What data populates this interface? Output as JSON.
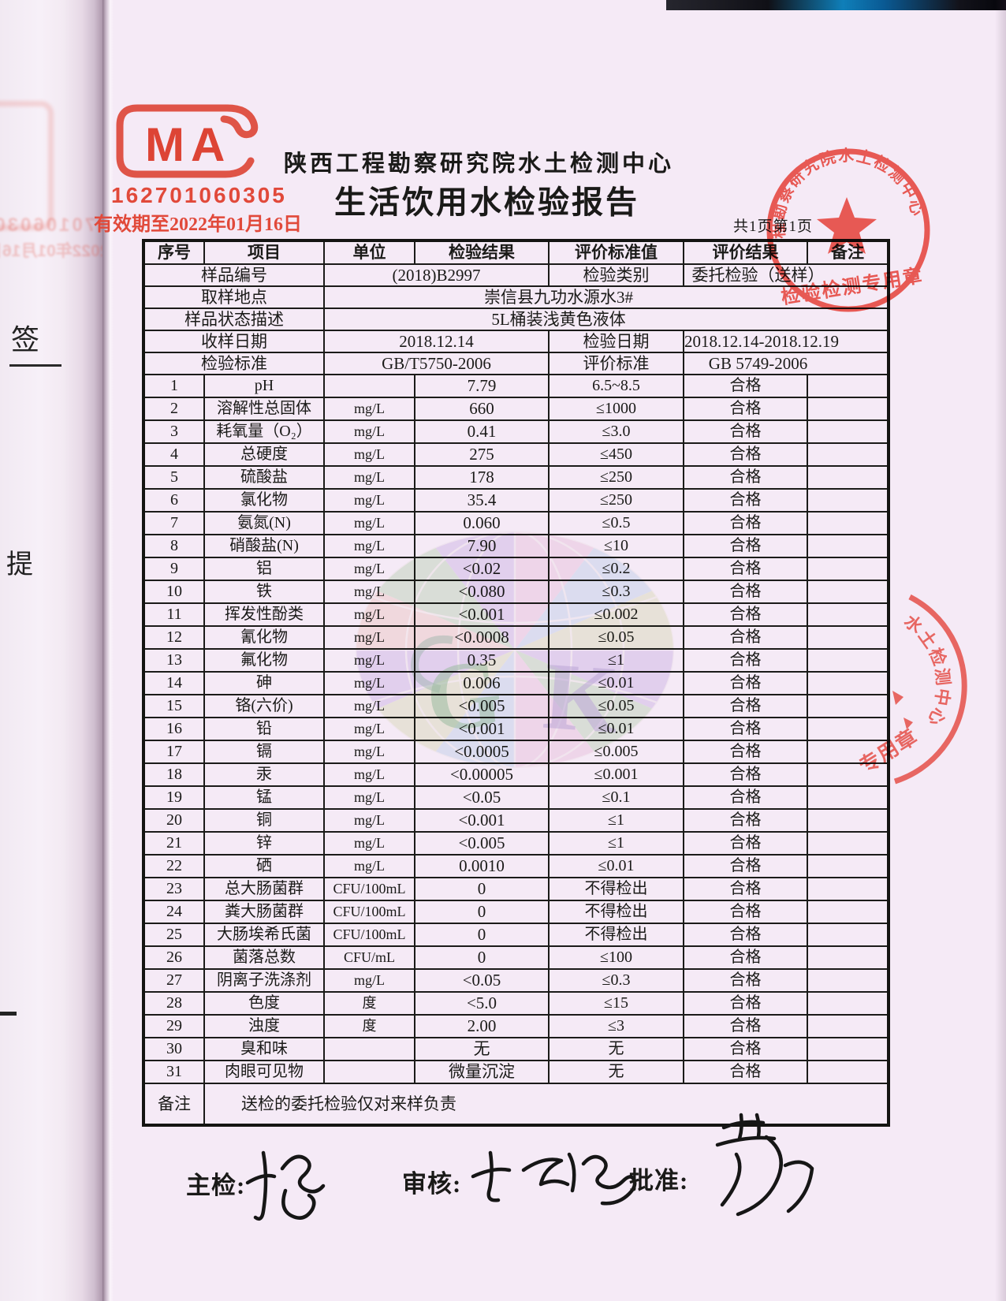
{
  "document": {
    "org_title": "陕西工程勘察研究院水土检测中心",
    "report_title": "生活饮用水检验报告",
    "page_info": "共1页第1页"
  },
  "cma_stamp": {
    "letters": "MA",
    "code": "162701060305",
    "validity": "有效期至2022年01月16日"
  },
  "meta": {
    "rows": [
      {
        "label": "样品编号",
        "value": "(2018)B2997",
        "label2": "检验类别",
        "value2": "委托检验（送样）"
      },
      {
        "label": "取样地点",
        "value": "崇信县九功水源水3#"
      },
      {
        "label": "样品状态描述",
        "value": "5L桶装浅黄色液体"
      },
      {
        "label": "收样日期",
        "value": "2018.12.14",
        "label2": "检验日期",
        "value2": "2018.12.14-2018.12.19"
      },
      {
        "label": "检验标准",
        "value": "GB/T5750-2006",
        "label2": "评价标准",
        "value2": "GB 5749-2006"
      }
    ]
  },
  "table": {
    "headers": [
      "序号",
      "项目",
      "单位",
      "检验结果",
      "评价标准值",
      "评价结果",
      "备注"
    ],
    "rows": [
      [
        "1",
        "pH",
        "",
        "7.79",
        "6.5~8.5",
        "合格",
        ""
      ],
      [
        "2",
        "溶解性总固体",
        "mg/L",
        "660",
        "≤1000",
        "合格",
        ""
      ],
      [
        "3",
        "耗氧量（O₂）",
        "mg/L",
        "0.41",
        "≤3.0",
        "合格",
        ""
      ],
      [
        "4",
        "总硬度",
        "mg/L",
        "275",
        "≤450",
        "合格",
        ""
      ],
      [
        "5",
        "硫酸盐",
        "mg/L",
        "178",
        "≤250",
        "合格",
        ""
      ],
      [
        "6",
        "氯化物",
        "mg/L",
        "35.4",
        "≤250",
        "合格",
        ""
      ],
      [
        "7",
        "氨氮(N)",
        "mg/L",
        "0.060",
        "≤0.5",
        "合格",
        ""
      ],
      [
        "8",
        "硝酸盐(N)",
        "mg/L",
        "7.90",
        "≤10",
        "合格",
        ""
      ],
      [
        "9",
        "铝",
        "mg/L",
        "<0.02",
        "≤0.2",
        "合格",
        ""
      ],
      [
        "10",
        "铁",
        "mg/L",
        "<0.080",
        "≤0.3",
        "合格",
        ""
      ],
      [
        "11",
        "挥发性酚类",
        "mg/L",
        "<0.001",
        "≤0.002",
        "合格",
        ""
      ],
      [
        "12",
        "氰化物",
        "mg/L",
        "<0.0008",
        "≤0.05",
        "合格",
        ""
      ],
      [
        "13",
        "氟化物",
        "mg/L",
        "0.35",
        "≤1",
        "合格",
        ""
      ],
      [
        "14",
        "砷",
        "mg/L",
        "0.006",
        "≤0.01",
        "合格",
        ""
      ],
      [
        "15",
        "铬(六价)",
        "mg/L",
        "<0.005",
        "≤0.05",
        "合格",
        ""
      ],
      [
        "16",
        "铅",
        "mg/L",
        "<0.001",
        "≤0.01",
        "合格",
        ""
      ],
      [
        "17",
        "镉",
        "mg/L",
        "<0.0005",
        "≤0.005",
        "合格",
        ""
      ],
      [
        "18",
        "汞",
        "mg/L",
        "<0.00005",
        "≤0.001",
        "合格",
        ""
      ],
      [
        "19",
        "锰",
        "mg/L",
        "<0.05",
        "≤0.1",
        "合格",
        ""
      ],
      [
        "20",
        "铜",
        "mg/L",
        "<0.001",
        "≤1",
        "合格",
        ""
      ],
      [
        "21",
        "锌",
        "mg/L",
        "<0.005",
        "≤1",
        "合格",
        ""
      ],
      [
        "22",
        "硒",
        "mg/L",
        "0.0010",
        "≤0.01",
        "合格",
        ""
      ],
      [
        "23",
        "总大肠菌群",
        "CFU/100mL",
        "0",
        "不得检出",
        "合格",
        ""
      ],
      [
        "24",
        "粪大肠菌群",
        "CFU/100mL",
        "0",
        "不得检出",
        "合格",
        ""
      ],
      [
        "25",
        "大肠埃希氏菌",
        "CFU/100mL",
        "0",
        "不得检出",
        "合格",
        ""
      ],
      [
        "26",
        "菌落总数",
        "CFU/mL",
        "0",
        "≤100",
        "合格",
        ""
      ],
      [
        "27",
        "阴离子洗涤剂",
        "mg/L",
        "<0.05",
        "≤0.3",
        "合格",
        ""
      ],
      [
        "28",
        "色度",
        "度",
        "<5.0",
        "≤15",
        "合格",
        ""
      ],
      [
        "29",
        "浊度",
        "度",
        "2.00",
        "≤3",
        "合格",
        ""
      ],
      [
        "30",
        "臭和味",
        "",
        "无",
        "无",
        "合格",
        ""
      ],
      [
        "31",
        "肉眼可见物",
        "",
        "微量沉淀",
        "无",
        "合格",
        ""
      ]
    ]
  },
  "remark": {
    "label": "备注",
    "text": "送检的委托检验仅对来样负责"
  },
  "signatures": {
    "inspector": "主检:",
    "reviewer": "审核:",
    "approver": "批准:"
  },
  "stamps": {
    "ring_text": "程勘察研究院水土检测中心",
    "ring_caption": "检验检测专用章",
    "partial_arc_text": "水土检测中心",
    "partial_caption": "专用章"
  },
  "margin": {
    "sign": "签",
    "ti": "提"
  },
  "watermark": {
    "letters": [
      "G",
      "K"
    ]
  },
  "colors": {
    "stamp_red": "#e8483a",
    "ink": "#1a1a18",
    "paper": "#f5eaf6"
  }
}
